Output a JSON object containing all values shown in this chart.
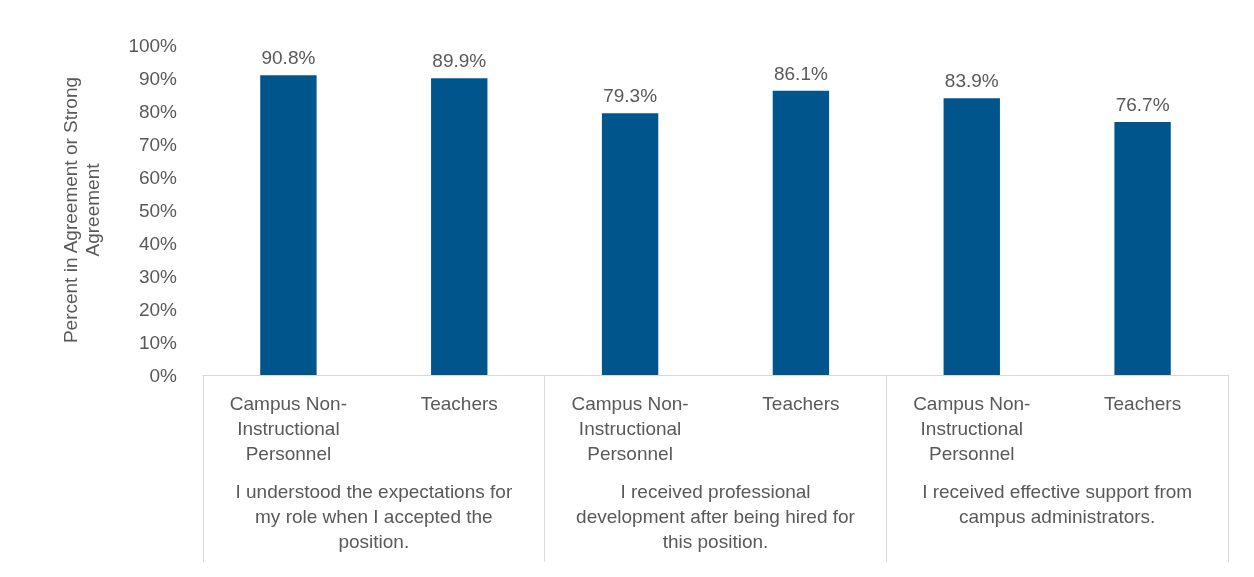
{
  "chart_data": {
    "type": "bar",
    "ylabel": "Percent in Agreement or Strong Agreement",
    "categories": [
      "Campus Non-Instructional Personnel",
      "Teachers",
      "Campus Non-Instructional Personnel",
      "Teachers",
      "Campus Non-Instructional Personnel",
      "Teachers"
    ],
    "values": [
      90.8,
      89.9,
      79.3,
      86.1,
      83.9,
      76.7
    ],
    "value_labels": [
      "90.8%",
      "89.9%",
      "79.3%",
      "86.1%",
      "83.9%",
      "76.7%"
    ],
    "color": "#00558c",
    "ylim": [
      0,
      100
    ],
    "yticks": [
      {
        "value": 0,
        "label": "0%"
      },
      {
        "value": 10,
        "label": "10%"
      },
      {
        "value": 20,
        "label": "20%"
      },
      {
        "value": 30,
        "label": "30%"
      },
      {
        "value": 40,
        "label": "40%"
      },
      {
        "value": 50,
        "label": "50%"
      },
      {
        "value": 60,
        "label": "60%"
      },
      {
        "value": 70,
        "label": "70%"
      },
      {
        "value": 80,
        "label": "80%"
      },
      {
        "value": 90,
        "label": "90%"
      },
      {
        "value": 100,
        "label": "100%"
      }
    ],
    "annotations": [
      "I understood the expectations for my role when I accepted the position.",
      "I received professional development after being hired for this position.",
      "I received effective support from campus administrators."
    ],
    "grid": false
  }
}
